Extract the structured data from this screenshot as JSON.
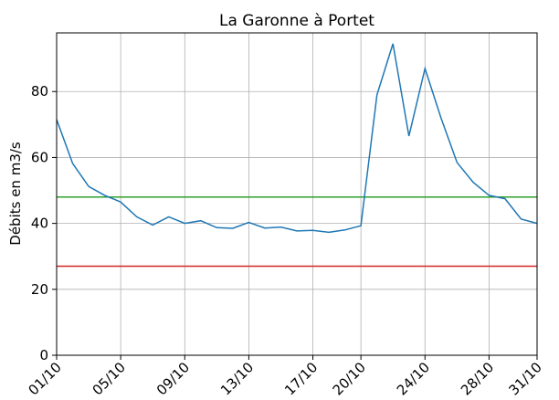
{
  "chart_data": {
    "type": "line",
    "title": "La Garonne à Portet",
    "ylabel": "Débits en m3/s",
    "categories": [
      "01/10",
      null,
      null,
      null,
      "05/10",
      null,
      null,
      null,
      "09/10",
      null,
      null,
      null,
      "13/10",
      null,
      null,
      null,
      "17/10",
      null,
      null,
      "20/10",
      null,
      null,
      null,
      "24/10",
      null,
      null,
      null,
      "28/10",
      null,
      null,
      "31/10"
    ],
    "series": [
      {
        "color": "#1f77b4",
        "values": [
          71.5,
          58.2,
          51.2,
          48.5,
          46.5,
          42,
          39.5,
          42,
          40,
          40.8,
          38.7,
          38.5,
          40.3,
          38.6,
          38.9,
          37.7,
          37.9,
          37.3,
          38,
          39.3,
          79,
          94.5,
          66.5,
          87,
          72,
          58.5,
          52.5,
          48.5,
          47.5,
          41.3,
          40
        ]
      }
    ],
    "hlines": [
      {
        "value": 48,
        "color": "#2ca02c"
      },
      {
        "value": 27,
        "color": "#d62728"
      }
    ],
    "ylim": [
      0,
      97.8
    ],
    "yticks": [
      0,
      20,
      40,
      60,
      80
    ],
    "grid": true
  }
}
